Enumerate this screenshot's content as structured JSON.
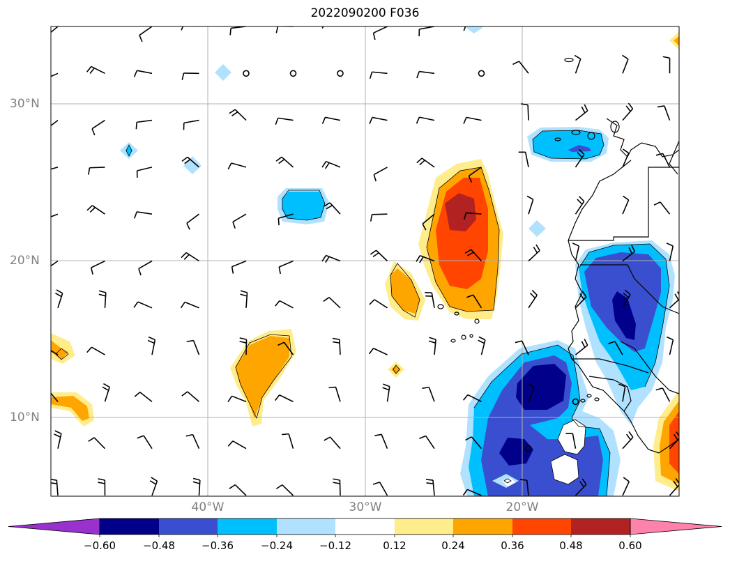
{
  "title": "2022090200 F036",
  "lat_labels": [
    "30°N",
    "20°N",
    "10°N"
  ],
  "lon_labels": [
    "40°W",
    "30°W",
    "20°W"
  ],
  "colorbar": {
    "labels": [
      "−0.60",
      "−0.48",
      "−0.36",
      "−0.24",
      "−0.12",
      "0.12",
      "0.24",
      "0.36",
      "0.48",
      "0.60"
    ],
    "colors": [
      "#9932cc",
      "#00008b",
      "#3a4fcf",
      "#00bfff",
      "#b0e2ff",
      "#ffffff",
      "#ffec8b",
      "#ffa500",
      "#ff4500",
      "#b22222",
      "#ff82ab"
    ]
  },
  "palette": {
    "n060": "#00008b",
    "n048": "#3a4fcf",
    "n036": "#00bfff",
    "n024": "#b0e2ff",
    "p012": "#ffec8b",
    "p024": "#ffa500",
    "p036": "#ff4500",
    "p048": "#b22222"
  }
}
